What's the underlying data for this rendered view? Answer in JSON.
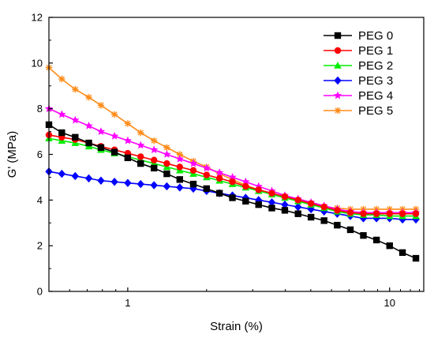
{
  "chart_data": {
    "type": "line",
    "xscale": "log",
    "xlabel": "Strain (%)",
    "ylabel": "G' (MPa)",
    "xlim": [
      0.5,
      13.5
    ],
    "ylim": [
      0,
      12
    ],
    "xticks": [
      {
        "value": 1,
        "label": "1"
      },
      {
        "value": 10,
        "label": "10"
      }
    ],
    "yticks": [
      {
        "value": 0,
        "label": "0"
      },
      {
        "value": 2,
        "label": "2"
      },
      {
        "value": 4,
        "label": "4"
      },
      {
        "value": 6,
        "label": "6"
      },
      {
        "value": 8,
        "label": "8"
      },
      {
        "value": 10,
        "label": "10"
      },
      {
        "value": 12,
        "label": "12"
      }
    ],
    "legend_position": "top-right",
    "x": [
      0.5,
      0.56,
      0.63,
      0.71,
      0.79,
      0.89,
      1.0,
      1.12,
      1.26,
      1.41,
      1.58,
      1.78,
      2.0,
      2.24,
      2.51,
      2.82,
      3.16,
      3.55,
      3.98,
      4.47,
      5.01,
      5.62,
      6.31,
      7.08,
      7.94,
      8.91,
      10.0,
      11.2,
      12.6
    ],
    "series": [
      {
        "name": "PEG 0",
        "color": "#000000",
        "marker": "square",
        "values": [
          7.3,
          6.95,
          6.75,
          6.5,
          6.3,
          6.1,
          5.85,
          5.6,
          5.4,
          5.15,
          4.9,
          4.7,
          4.5,
          4.3,
          4.1,
          3.95,
          3.8,
          3.65,
          3.55,
          3.4,
          3.25,
          3.1,
          2.9,
          2.7,
          2.45,
          2.25,
          2.0,
          1.7,
          1.45
        ]
      },
      {
        "name": "PEG 1",
        "color": "#ff0000",
        "marker": "circle",
        "values": [
          6.85,
          6.75,
          6.65,
          6.5,
          6.35,
          6.2,
          6.05,
          5.9,
          5.75,
          5.6,
          5.45,
          5.3,
          5.1,
          4.95,
          4.8,
          4.6,
          4.45,
          4.3,
          4.15,
          4.0,
          3.85,
          3.7,
          3.55,
          3.45,
          3.4,
          3.4,
          3.4,
          3.4,
          3.4
        ]
      },
      {
        "name": "PEG 2",
        "color": "#00ee00",
        "marker": "triangle",
        "values": [
          6.7,
          6.6,
          6.5,
          6.35,
          6.2,
          6.05,
          5.9,
          5.75,
          5.6,
          5.45,
          5.3,
          5.15,
          5.0,
          4.85,
          4.7,
          4.55,
          4.4,
          4.25,
          4.1,
          3.95,
          3.8,
          3.65,
          3.5,
          3.4,
          3.35,
          3.35,
          3.3,
          3.3,
          3.3
        ]
      },
      {
        "name": "PEG 3",
        "color": "#0000ff",
        "marker": "diamond",
        "values": [
          5.25,
          5.15,
          5.05,
          4.95,
          4.85,
          4.8,
          4.75,
          4.7,
          4.65,
          4.6,
          4.55,
          4.5,
          4.4,
          4.3,
          4.2,
          4.1,
          4.0,
          3.9,
          3.8,
          3.7,
          3.6,
          3.5,
          3.4,
          3.3,
          3.2,
          3.2,
          3.2,
          3.15,
          3.15
        ]
      },
      {
        "name": "PEG 4",
        "color": "#ff00ff",
        "marker": "star",
        "values": [
          8.0,
          7.75,
          7.5,
          7.25,
          7.0,
          6.8,
          6.6,
          6.4,
          6.2,
          6.0,
          5.8,
          5.6,
          5.4,
          5.2,
          5.0,
          4.8,
          4.6,
          4.4,
          4.2,
          4.05,
          3.9,
          3.75,
          3.6,
          3.5,
          3.45,
          3.45,
          3.45,
          3.45,
          3.45
        ]
      },
      {
        "name": "PEG 5",
        "color": "#ff8c1a",
        "marker": "asterisk",
        "values": [
          9.8,
          9.3,
          8.85,
          8.5,
          8.15,
          7.75,
          7.35,
          6.95,
          6.6,
          6.3,
          6.0,
          5.7,
          5.45,
          5.15,
          4.9,
          4.65,
          4.45,
          4.25,
          4.1,
          3.95,
          3.8,
          3.7,
          3.65,
          3.6,
          3.6,
          3.6,
          3.6,
          3.6,
          3.6
        ]
      }
    ]
  }
}
